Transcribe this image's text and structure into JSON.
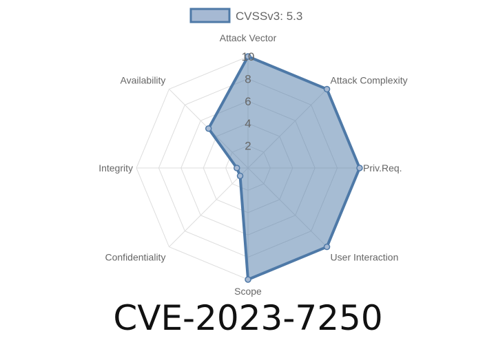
{
  "chart_data": {
    "type": "radar",
    "title": "CVE-2023-7250",
    "categories": [
      "Attack Vector",
      "Attack Complexity",
      "Priv.Req.",
      "User Interaction",
      "Scope",
      "Confidentiality",
      "Integrity",
      "Availability"
    ],
    "series": [
      {
        "name": "CVSSv3: 5.3",
        "values": [
          10,
          10,
          10,
          10,
          10,
          1,
          1,
          5
        ]
      }
    ],
    "rlim": [
      0,
      10
    ],
    "ticks": [
      "2",
      "4",
      "6",
      "8",
      "10"
    ],
    "grid": true,
    "legend": "top",
    "colors": {
      "line": "#4e79a7",
      "fill": "#4e79a7",
      "fill_opacity": 0.5,
      "grid": "#dddddd"
    }
  }
}
